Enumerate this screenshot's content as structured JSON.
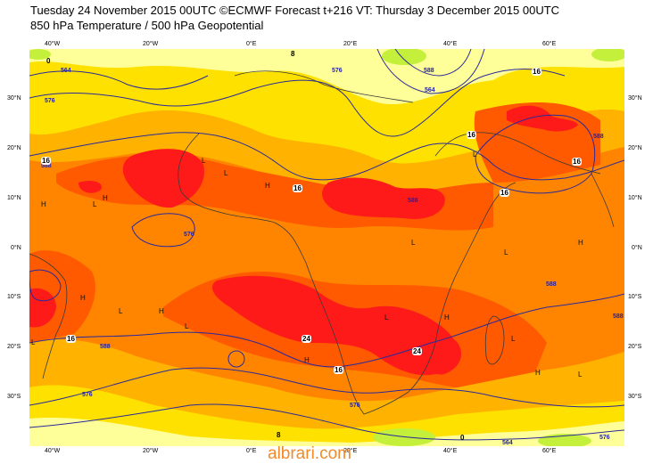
{
  "header": {
    "line1": "Tuesday 24 November 2015 00UTC ©ECMWF Forecast t+216 VT: Thursday 3 December 2015 00UTC",
    "line2": "850 hPa Temperature / 500 hPa Geopotential"
  },
  "map": {
    "lon_labels": [
      "40°W",
      "20°W",
      "0°E",
      "20°E",
      "40°E",
      "60°E"
    ],
    "lat_labels": [
      "30°N",
      "20°N",
      "10°N",
      "0°N",
      "10°S",
      "20°S",
      "30°S"
    ],
    "contour_labels": [
      "564",
      "576",
      "576",
      "588",
      "588",
      "576",
      "564",
      "588",
      "588",
      "588",
      "588",
      "588",
      "576",
      "576",
      "564",
      "576"
    ],
    "temp_labels": [
      "16",
      "16",
      "16",
      "16",
      "16",
      "16",
      "16",
      "24",
      "24",
      "16",
      "0",
      "0",
      "8",
      "8"
    ],
    "pressure_marks": [
      "H",
      "L",
      "H",
      "L",
      "L",
      "H",
      "L",
      "H",
      "L",
      "L",
      "H",
      "L",
      "H",
      "L",
      "H",
      "L",
      "H",
      "L",
      "L",
      "H",
      "L"
    ],
    "colors": {
      "sea_cold": "#f7f73a",
      "pale": "#ffff99",
      "yellow": "#ffe100",
      "orange_light": "#ffb300",
      "orange": "#ff8400",
      "orange_dark": "#ff5a00",
      "red": "#ff1a1a",
      "green": "#c4f03c",
      "contour": "#2a2a9a",
      "coast": "#3a3a3a"
    }
  },
  "watermark": "albrari.com"
}
